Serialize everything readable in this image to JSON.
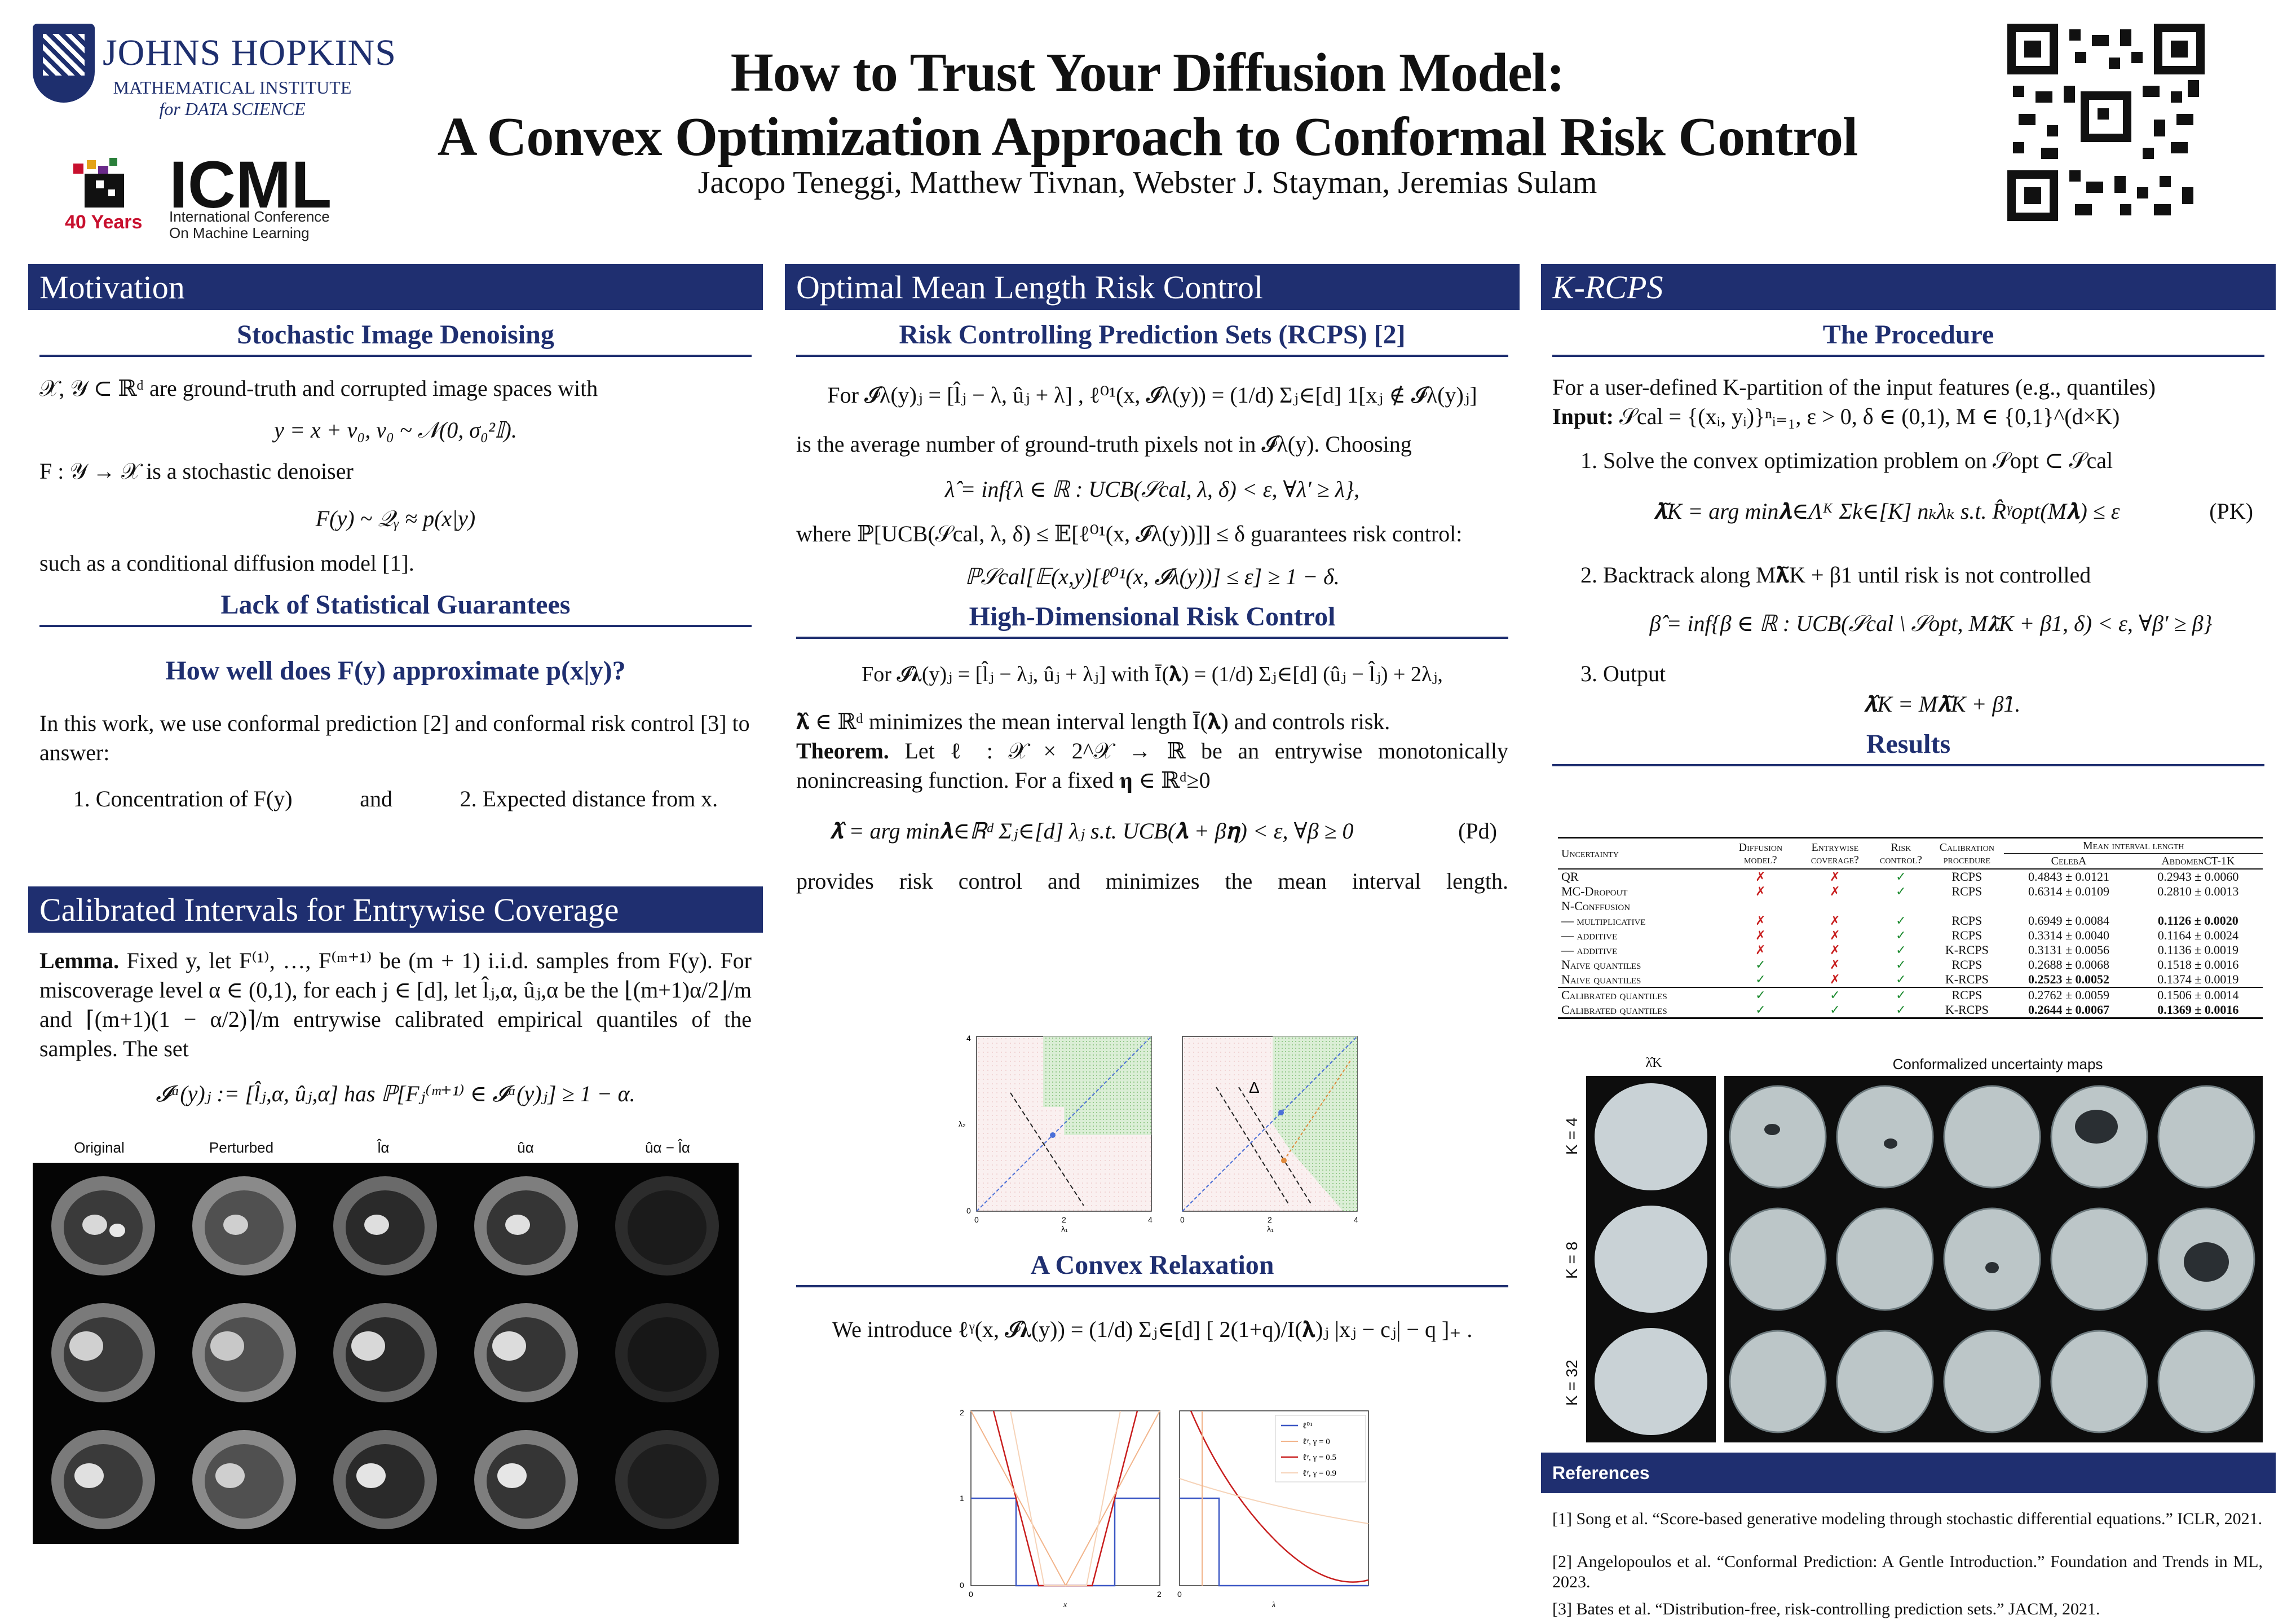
{
  "header": {
    "title_line1": "How to Trust Your Diffusion Model:",
    "title_line2": "A Convex Optimization Approach to Conformal Risk Control",
    "authors": "Jacopo Teneggi, Matthew Tivnan, Webster J. Stayman, Jeremias Sulam",
    "jh_name": "JOHNS HOPKINS",
    "jh_sub1": "MATHEMATICAL INSTITUTE",
    "jh_sub2": "for DATA SCIENCE",
    "icml_word": "ICML",
    "icml_sub1": "International Conference",
    "icml_sub2": "On Machine Learning",
    "icml_years": "40 Years"
  },
  "motivation": {
    "bar": "Motivation",
    "sub1": "Stochastic Image Denoising",
    "p1": "𝒳, 𝒴 ⊂ ℝᵈ are ground-truth and corrupted image spaces with",
    "eq1": "y = x + v₀,  v₀ ~ 𝒩(0, σ₀²𝕀).",
    "p2": "F : 𝒴 → 𝒳 is a stochastic denoiser",
    "eq2": "F(y) ~ 𝒬ᵧ ≈ p(x|y)",
    "p3": "such as a conditional diffusion model [1].",
    "sub2": "Lack of Statistical Guarantees",
    "question": "How well does F(y) approximate p(x|y)?",
    "p4": "In this work, we use conformal prediction [2] and conformal risk control [3] to answer:",
    "item1": "1. Concentration of F(y)",
    "and": "and",
    "item2": "2. Expected distance from x."
  },
  "calibrated": {
    "bar": "Calibrated Intervals for Entrywise Coverage",
    "lemma": "Lemma.",
    "p1": "Fixed y, let F⁽¹⁾, …, F⁽ᵐ⁺¹⁾ be (m + 1) i.i.d. samples from F(y). For miscoverage level α ∈ (0,1), for each j ∈ [d], let l̂ⱼ,α, ûⱼ,α be the ⌊(m+1)α/2⌋/m and ⌈(m+1)(1 − α/2)⌉/m entrywise calibrated empirical quantiles of the samples. The set",
    "eq": "𝓘ᵅ(y)ⱼ := [l̂ⱼ,α, ûⱼ,α]     has     ℙ[Fⱼ⁽ᵐ⁺¹⁾ ∈ 𝓘ᵅ(y)ⱼ] ≥ 1 − α.",
    "fig_labels": [
      "Original",
      "Perturbed",
      "l̂α",
      "ûα",
      "ûα − l̂α"
    ]
  },
  "optimal": {
    "bar": "Optimal Mean Length Risk Control",
    "sub1": "Risk Controlling Prediction Sets (RCPS) [2]",
    "eq1": "For   𝓘λ(y)ⱼ = [l̂ⱼ − λ, ûⱼ + λ] ,      ℓ⁰¹(x, 𝓘λ(y)) = (1/d) Σⱼ∈[d] 1[xⱼ ∉ 𝓘λ(y)ⱼ]",
    "p1": "is the average number of ground-truth pixels not in 𝓘λ(y). Choosing",
    "eq2": "λ̂ = inf{λ ∈ ℝ :  UCB(𝒮cal, λ, δ) < ε,  ∀λ′ ≥ λ},",
    "p2": "where ℙ[UCB(𝒮cal, λ, δ) ≤ 𝔼[ℓ⁰¹(x, 𝓘λ(y))]] ≤ δ guarantees risk control:",
    "eq3": "ℙ𝒮cal[𝔼(x,y)[ℓ⁰¹(x, 𝓘λ(y))] ≤ ε] ≥ 1 − δ.",
    "sub2": "High-Dimensional Risk Control",
    "eq4": "For   𝓘𝛌(y)ⱼ = [l̂ⱼ − λⱼ, ûⱼ + λⱼ]      with      Ī(𝛌) = (1/d) Σⱼ∈[d] (ûⱼ − l̂ⱼ) + 2λⱼ,",
    "p3": "𝛌̂ ∈ ℝᵈ minimizes the mean interval length Ī(𝛌) and controls risk.",
    "theorem": "Theorem.",
    "p4": "Let ℓ : 𝒳 × 2^𝒳 → ℝ be an entrywise monotonically nonincreasing function. For a fixed 𝛈 ∈ ℝᵈ≥0",
    "eq5": "𝛌̂ = arg min𝛌∈ℝᵈ Σⱼ∈[d] λⱼ      s.t.   UCB(𝛌 + β𝛈) < ε,  ∀β ≥ 0",
    "tag": "(Pd)",
    "p5": "provides risk control and minimizes the mean interval length.",
    "sub3": "A Convex Relaxation",
    "eq6": "We introduce    ℓᵞ(x, 𝓘𝛌(y)) = (1/d) Σⱼ∈[d] [ 2(1+q)/I(𝛌)ⱼ |xⱼ − cⱼ| − q ]₊ ."
  },
  "krcps": {
    "bar": "K-RCPS",
    "sub1": "The Procedure",
    "p1": "For a user-defined K-partition of the input features (e.g., quantiles)",
    "input_label": "Input:",
    "input": "𝒮cal = {(xᵢ, yᵢ)}ⁿᵢ₌₁,  ε > 0,  δ ∈ (0,1),  M ∈ {0,1}^(d×K)",
    "s1": "1. Solve the convex optimization problem on 𝒮opt ⊂ 𝒮cal",
    "eq1": "𝛌̃K = arg min𝛌∈Λᴷ Σk∈[K] nₖλₖ       s.t.   R̂ᵞopt(M𝛌) ≤ ε",
    "tag1": "(PK)",
    "s2": "2. Backtrack along M𝛌̃K + β1 until risk is not controlled",
    "eq2": "β̂ = inf{β ∈ ℝ :  UCB(𝒮cal \\ 𝒮opt, M𝛌̃K + β1, δ) < ε,  ∀β′ ≥ β}",
    "s3": "3. Output",
    "eq3": "𝛌̂K = M𝛌̃K + β̂1.",
    "sub2": "Results",
    "table": {
      "headers": [
        "Uncertainty",
        "Diffusion model?",
        "Entrywise coverage?",
        "Risk control?",
        "Calibration procedure",
        "Mean interval length",
        "CelebA",
        "AbdomenCT-1K"
      ],
      "rows": [
        [
          "QR",
          "✗",
          "✗",
          "✓",
          "RCPS",
          "0.4843 ± 0.0121",
          "0.2943 ± 0.0060"
        ],
        [
          "MC-Dropout",
          "✗",
          "✗",
          "✓",
          "RCPS",
          "0.6314 ± 0.0109",
          "0.2810 ± 0.0013"
        ],
        [
          "N-Conffusion",
          "",
          "",
          "",
          "",
          "",
          ""
        ],
        [
          "— multiplicative",
          "✗",
          "✗",
          "✓",
          "RCPS",
          "0.6949 ± 0.0084",
          "0.1126 ± 0.0020"
        ],
        [
          "— additive",
          "✗",
          "✗",
          "✓",
          "RCPS",
          "0.3314 ± 0.0040",
          "0.1164 ± 0.0024"
        ],
        [
          "— additive",
          "✗",
          "✗",
          "✓",
          "K-RCPS",
          "0.3131 ± 0.0056",
          "0.1136 ± 0.0019"
        ],
        [
          "Naive quantiles",
          "✓",
          "✗",
          "✓",
          "RCPS",
          "0.2688 ± 0.0068",
          "0.1518 ± 0.0016"
        ],
        [
          "Naive quantiles",
          "✓",
          "✗",
          "✓",
          "K-RCPS",
          "0.2523 ± 0.0052",
          "0.1374 ± 0.0019"
        ],
        [
          "Calibrated quantiles",
          "✓",
          "✓",
          "✓",
          "RCPS",
          "0.2762 ± 0.0059",
          "0.1506 ± 0.0014"
        ],
        [
          "Calibrated quantiles",
          "✓",
          "✓",
          "✓",
          "K-RCPS",
          "0.2644 ± 0.0067",
          "0.1369 ± 0.0016"
        ]
      ]
    },
    "maps_title": "Conformalized uncertainty maps",
    "lambda_label": "λ̂K",
    "k_labels": [
      "K = 4",
      "K = 8",
      "K = 32"
    ]
  },
  "references": {
    "bar": "References",
    "r1": "[1] Song et al. “Score-based generative modeling through stochastic differential equations.” ICLR, 2021.",
    "r2": "[2] Angelopoulos et al. “Conformal Prediction: A Gentle Introduction.” Foundation and Trends in ML, 2023.",
    "r3": "[3] Bates et al. “Distribution-free, risk-controlling prediction sets.” JACM, 2021."
  },
  "plots": {
    "p1_ylabel": "λ₂",
    "p1_xlabel": "λ₁",
    "p1_ticks": [
      "0",
      "2",
      "4"
    ],
    "p2_delta": "Δ",
    "legend": [
      "ℓ⁰¹",
      "ℓᵞ, γ = 0",
      "ℓᵞ, γ = 0.5",
      "ℓᵞ, γ = 0.9"
    ],
    "p3_yticks": [
      "0",
      "1",
      "2"
    ],
    "p3_xlabel": "x",
    "p4_xlabel": "λ"
  },
  "colors": {
    "navy": "#1f2f70",
    "green": "#1b8a2e",
    "red": "#c81e1e"
  }
}
